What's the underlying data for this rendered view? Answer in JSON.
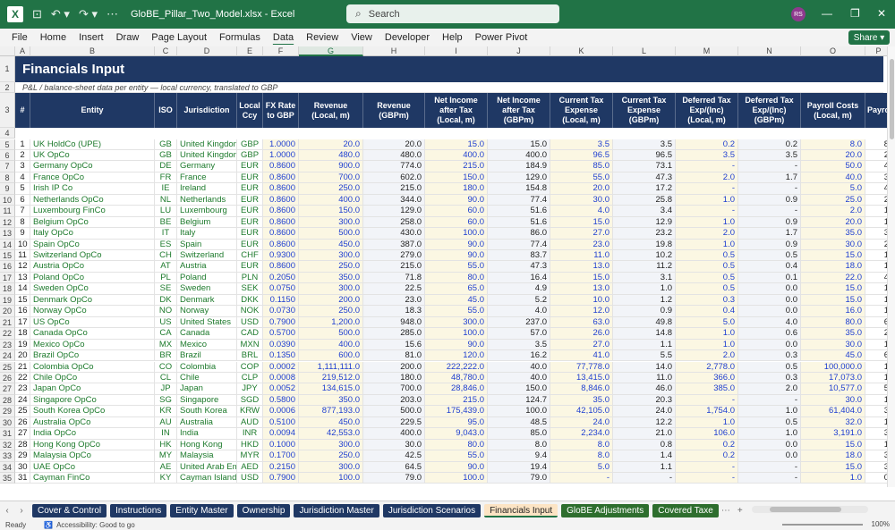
{
  "window": {
    "title": "GloBE_Pillar_Two_Model.xlsx  -  Excel",
    "search_placeholder": "Search",
    "avatar_initials": "RS",
    "accent": "#217346"
  },
  "menu": [
    "File",
    "Home",
    "Insert",
    "Draw",
    "Page Layout",
    "Formulas",
    "Data",
    "Review",
    "View",
    "Developer",
    "Help",
    "Power Pivot"
  ],
  "menu_active": "Data",
  "share_label": "Share",
  "columns": [
    "A",
    "B",
    "C",
    "D",
    "E",
    "F",
    "G",
    "H",
    "I",
    "J",
    "K",
    "L",
    "M",
    "N",
    "O",
    "P"
  ],
  "selected_column": "G",
  "sheet": {
    "title": "Financials Input",
    "subtitle": "P&L / balance-sheet data per entity — local currency, translated to GBP",
    "headers": [
      "#",
      "Entity",
      "ISO",
      "Jurisdiction",
      "Local Ccy",
      "FX Rate to GBP",
      "Revenue (Local, m)",
      "Revenue (GBPm)",
      "Net Income after Tax (Local, m)",
      "Net Income after Tax (GBPm)",
      "Current Tax Expense (Local, m)",
      "Current Tax Expense (GBPm)",
      "Deferred Tax Exp/(Inc) (Local, m)",
      "Deferred Tax Exp/(Inc) (GBPm)",
      "Payroll Costs (Local, m)",
      "Payro"
    ],
    "rows": [
      [
        "1",
        "UK HoldCo (UPE)",
        "GB",
        "United Kingdom",
        "GBP",
        "1.0000",
        "20.0",
        "20.0",
        "15.0",
        "15.0",
        "3.5",
        "3.5",
        "0.2",
        "0.2",
        "8.0",
        "8"
      ],
      [
        "2",
        "UK OpCo",
        "GB",
        "United Kingdom",
        "GBP",
        "1.0000",
        "480.0",
        "480.0",
        "400.0",
        "400.0",
        "96.5",
        "96.5",
        "3.5",
        "3.5",
        "20.0",
        "2"
      ],
      [
        "3",
        "Germany OpCo",
        "DE",
        "Germany",
        "EUR",
        "0.8600",
        "900.0",
        "774.0",
        "215.0",
        "184.9",
        "85.0",
        "73.1",
        "-",
        "-",
        "50.0",
        "4"
      ],
      [
        "4",
        "France OpCo",
        "FR",
        "France",
        "EUR",
        "0.8600",
        "700.0",
        "602.0",
        "150.0",
        "129.0",
        "55.0",
        "47.3",
        "2.0",
        "1.7",
        "40.0",
        "3"
      ],
      [
        "5",
        "Irish IP Co",
        "IE",
        "Ireland",
        "EUR",
        "0.8600",
        "250.0",
        "215.0",
        "180.0",
        "154.8",
        "20.0",
        "17.2",
        "-",
        "-",
        "5.0",
        "4"
      ],
      [
        "6",
        "Netherlands OpCo",
        "NL",
        "Netherlands",
        "EUR",
        "0.8600",
        "400.0",
        "344.0",
        "90.0",
        "77.4",
        "30.0",
        "25.8",
        "1.0",
        "0.9",
        "25.0",
        "2"
      ],
      [
        "7",
        "Luxembourg FinCo",
        "LU",
        "Luxembourg",
        "EUR",
        "0.8600",
        "150.0",
        "129.0",
        "60.0",
        "51.6",
        "4.0",
        "3.4",
        "-",
        "-",
        "2.0",
        "1"
      ],
      [
        "8",
        "Belgium OpCo",
        "BE",
        "Belgium",
        "EUR",
        "0.8600",
        "300.0",
        "258.0",
        "60.0",
        "51.6",
        "15.0",
        "12.9",
        "1.0",
        "0.9",
        "20.0",
        "1"
      ],
      [
        "9",
        "Italy OpCo",
        "IT",
        "Italy",
        "EUR",
        "0.8600",
        "500.0",
        "430.0",
        "100.0",
        "86.0",
        "27.0",
        "23.2",
        "2.0",
        "1.7",
        "35.0",
        "3"
      ],
      [
        "10",
        "Spain OpCo",
        "ES",
        "Spain",
        "EUR",
        "0.8600",
        "450.0",
        "387.0",
        "90.0",
        "77.4",
        "23.0",
        "19.8",
        "1.0",
        "0.9",
        "30.0",
        "2"
      ],
      [
        "11",
        "Switzerland OpCo",
        "CH",
        "Switzerland",
        "CHF",
        "0.9300",
        "300.0",
        "279.0",
        "90.0",
        "83.7",
        "11.0",
        "10.2",
        "0.5",
        "0.5",
        "15.0",
        "1"
      ],
      [
        "12",
        "Austria OpCo",
        "AT",
        "Austria",
        "EUR",
        "0.8600",
        "250.0",
        "215.0",
        "55.0",
        "47.3",
        "13.0",
        "11.2",
        "0.5",
        "0.4",
        "18.0",
        "1"
      ],
      [
        "13",
        "Poland OpCo",
        "PL",
        "Poland",
        "PLN",
        "0.2050",
        "350.0",
        "71.8",
        "80.0",
        "16.4",
        "15.0",
        "3.1",
        "0.5",
        "0.1",
        "22.0",
        "4"
      ],
      [
        "14",
        "Sweden OpCo",
        "SE",
        "Sweden",
        "SEK",
        "0.0750",
        "300.0",
        "22.5",
        "65.0",
        "4.9",
        "13.0",
        "1.0",
        "0.5",
        "0.0",
        "15.0",
        "1"
      ],
      [
        "15",
        "Denmark OpCo",
        "DK",
        "Denmark",
        "DKK",
        "0.1150",
        "200.0",
        "23.0",
        "45.0",
        "5.2",
        "10.0",
        "1.2",
        "0.3",
        "0.0",
        "15.0",
        "1"
      ],
      [
        "16",
        "Norway OpCo",
        "NO",
        "Norway",
        "NOK",
        "0.0730",
        "250.0",
        "18.3",
        "55.0",
        "4.0",
        "12.0",
        "0.9",
        "0.4",
        "0.0",
        "16.0",
        "1"
      ],
      [
        "17",
        "US OpCo",
        "US",
        "United States",
        "USD",
        "0.7900",
        "1,200.0",
        "948.0",
        "300.0",
        "237.0",
        "63.0",
        "49.8",
        "5.0",
        "4.0",
        "80.0",
        "6"
      ],
      [
        "18",
        "Canada OpCo",
        "CA",
        "Canada",
        "CAD",
        "0.5700",
        "500.0",
        "285.0",
        "100.0",
        "57.0",
        "26.0",
        "14.8",
        "1.0",
        "0.6",
        "35.0",
        "2"
      ],
      [
        "19",
        "Mexico OpCo",
        "MX",
        "Mexico",
        "MXN",
        "0.0390",
        "400.0",
        "15.6",
        "90.0",
        "3.5",
        "27.0",
        "1.1",
        "1.0",
        "0.0",
        "30.0",
        "1"
      ],
      [
        "20",
        "Brazil OpCo",
        "BR",
        "Brazil",
        "BRL",
        "0.1350",
        "600.0",
        "81.0",
        "120.0",
        "16.2",
        "41.0",
        "5.5",
        "2.0",
        "0.3",
        "45.0",
        "6"
      ],
      [
        "21",
        "Colombia OpCo",
        "CO",
        "Colombia",
        "COP",
        "0.0002",
        "1,111,111.0",
        "200.0",
        "222,222.0",
        "40.0",
        "77,778.0",
        "14.0",
        "2,778.0",
        "0.5",
        "100,000.0",
        "1"
      ],
      [
        "22",
        "Chile OpCo",
        "CL",
        "Chile",
        "CLP",
        "0.0008",
        "219,512.0",
        "180.0",
        "48,780.0",
        "40.0",
        "13,415.0",
        "11.0",
        "366.0",
        "0.3",
        "17,073.0",
        "1"
      ],
      [
        "23",
        "Japan OpCo",
        "JP",
        "Japan",
        "JPY",
        "0.0052",
        "134,615.0",
        "700.0",
        "28,846.0",
        "150.0",
        "8,846.0",
        "46.0",
        "385.0",
        "2.0",
        "10,577.0",
        "5"
      ],
      [
        "24",
        "Singapore OpCo",
        "SG",
        "Singapore",
        "SGD",
        "0.5800",
        "350.0",
        "203.0",
        "215.0",
        "124.7",
        "35.0",
        "20.3",
        "-",
        "-",
        "30.0",
        "1"
      ],
      [
        "25",
        "South Korea OpCo",
        "KR",
        "South Korea",
        "KRW",
        "0.0006",
        "877,193.0",
        "500.0",
        "175,439.0",
        "100.0",
        "42,105.0",
        "24.0",
        "1,754.0",
        "1.0",
        "61,404.0",
        "3"
      ],
      [
        "26",
        "Australia OpCo",
        "AU",
        "Australia",
        "AUD",
        "0.5100",
        "450.0",
        "229.5",
        "95.0",
        "48.5",
        "24.0",
        "12.2",
        "1.0",
        "0.5",
        "32.0",
        "1"
      ],
      [
        "27",
        "India OpCo",
        "IN",
        "India",
        "INR",
        "0.0094",
        "42,553.0",
        "400.0",
        "9,043.0",
        "85.0",
        "2,234.0",
        "21.0",
        "106.0",
        "1.0",
        "3,191.0",
        "3"
      ],
      [
        "28",
        "Hong Kong OpCo",
        "HK",
        "Hong Kong",
        "HKD",
        "0.1000",
        "300.0",
        "30.0",
        "80.0",
        "8.0",
        "8.0",
        "0.8",
        "0.2",
        "0.0",
        "15.0",
        "1"
      ],
      [
        "29",
        "Malaysia OpCo",
        "MY",
        "Malaysia",
        "MYR",
        "0.1700",
        "250.0",
        "42.5",
        "55.0",
        "9.4",
        "8.0",
        "1.4",
        "0.2",
        "0.0",
        "18.0",
        "3"
      ],
      [
        "30",
        "UAE OpCo",
        "AE",
        "United Arab Emirate",
        "AED",
        "0.2150",
        "300.0",
        "64.5",
        "90.0",
        "19.4",
        "5.0",
        "1.1",
        "-",
        "-",
        "15.0",
        "3"
      ],
      [
        "31",
        "Cayman FinCo",
        "KY",
        "Cayman Islands",
        "USD",
        "0.7900",
        "100.0",
        "79.0",
        "100.0",
        "79.0",
        "-",
        "-",
        "-",
        "-",
        "1.0",
        "0"
      ]
    ]
  },
  "sheet_tabs": [
    {
      "label": "Cover & Control",
      "style": "navy"
    },
    {
      "label": "Instructions",
      "style": "navy"
    },
    {
      "label": "Entity Master",
      "style": "navy"
    },
    {
      "label": "Ownership",
      "style": "navy"
    },
    {
      "label": "Jurisdiction Master",
      "style": "navy"
    },
    {
      "label": "Jurisdiction Scenarios",
      "style": "navy"
    },
    {
      "label": "Financials Input",
      "style": "active"
    },
    {
      "label": "GloBE Adjustments",
      "style": "green"
    },
    {
      "label": "Covered Taxe",
      "style": "green"
    }
  ],
  "status": {
    "ready": "Ready",
    "accessibility": "Accessibility: Good to go",
    "zoom": "100%"
  }
}
